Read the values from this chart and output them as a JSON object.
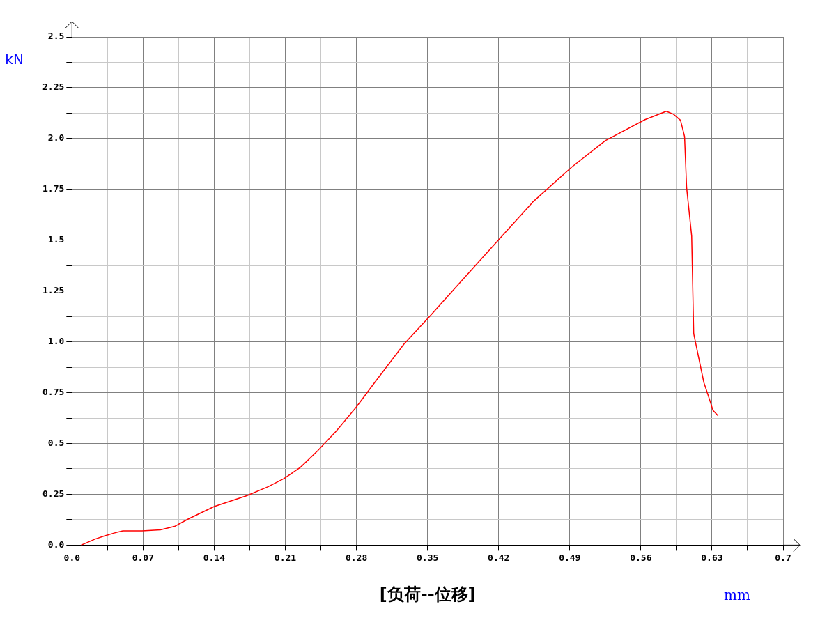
{
  "chart_data": {
    "type": "line",
    "title": "[负荷--位移]",
    "xlabel": "mm",
    "ylabel": "kN",
    "xlim": [
      0,
      0.7
    ],
    "xticks": [
      {
        "value": 0,
        "label": "0.0"
      },
      {
        "value": 0.035,
        "label": null
      },
      0.07,
      {
        "value": 0.105,
        "label": null
      },
      0.14,
      {
        "value": 0.175,
        "label": null
      },
      0.21,
      {
        "value": 0.245,
        "label": null
      },
      0.28,
      {
        "value": 0.315,
        "label": null
      },
      0.35,
      {
        "value": 0.385,
        "label": null
      },
      0.42,
      {
        "value": 0.455,
        "label": null
      },
      0.49,
      {
        "value": 0.525,
        "label": null
      },
      0.56,
      {
        "value": 0.595,
        "label": null
      },
      0.63,
      {
        "value": 0.665,
        "label": null
      },
      0.7
    ],
    "ylim": [
      0,
      2.5
    ],
    "yticks": [
      {
        "value": 0,
        "label": "0.0"
      },
      {
        "value": 0.125,
        "label": null
      },
      0.25,
      {
        "value": 0.375,
        "label": null
      },
      0.5,
      {
        "value": 0.625,
        "label": null
      },
      0.75,
      {
        "value": 0.875,
        "label": null
      },
      {
        "value": 1,
        "label": "1.0"
      },
      {
        "value": 1.125,
        "label": null
      },
      1.25,
      {
        "value": 1.375,
        "label": null
      },
      1.5,
      {
        "value": 1.625,
        "label": null
      },
      1.75,
      {
        "value": 1.875,
        "label": null
      },
      {
        "value": 2,
        "label": "2.0"
      },
      {
        "value": 2.125,
        "label": null
      },
      2.25,
      {
        "value": 2.375,
        "label": null
      },
      2.5
    ],
    "grid": true,
    "legend": false,
    "marker": "none",
    "line_style": "solid",
    "series": [
      {
        "color": "#ff0000",
        "x": [
          0.009,
          0.023,
          0.032,
          0.042,
          0.05,
          0.069,
          0.087,
          0.101,
          0.115,
          0.14,
          0.172,
          0.193,
          0.209,
          0.225,
          0.242,
          0.26,
          0.28,
          0.299,
          0.327,
          0.352,
          0.384,
          0.421,
          0.454,
          0.492,
          0.525,
          0.564,
          0.585,
          0.592,
          0.599,
          0.603,
          0.605,
          0.61,
          0.612,
          0.617,
          0.622,
          0.627,
          0.631,
          0.636
        ],
        "values": [
          0,
          0.03,
          0.045,
          0.06,
          0.07,
          0.07,
          0.075,
          0.092,
          0.13,
          0.19,
          0.243,
          0.287,
          0.328,
          0.383,
          0.465,
          0.56,
          0.68,
          0.807,
          0.99,
          1.125,
          1.303,
          1.508,
          1.69,
          1.86,
          1.99,
          2.093,
          2.134,
          2.12,
          2.09,
          2.01,
          1.76,
          1.52,
          1.04,
          0.92,
          0.8,
          0.725,
          0.663,
          0.636
        ]
      }
    ]
  }
}
